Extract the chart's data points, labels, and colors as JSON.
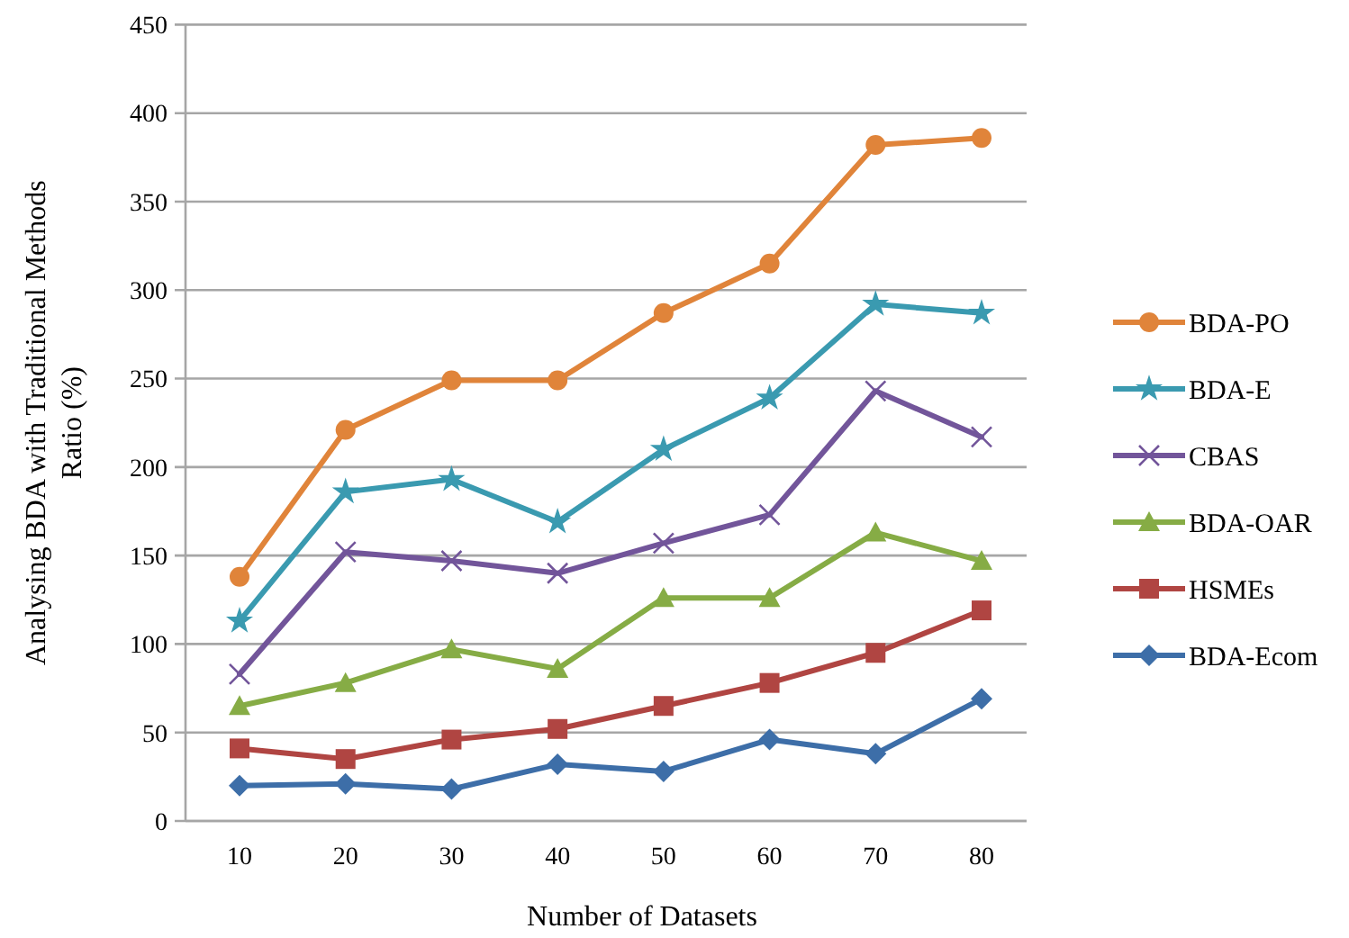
{
  "chart_data": {
    "type": "line",
    "xlabel": "Number of Datasets",
    "ylabel": "Analysing BDA with Traditional Methods Ratio (%)",
    "categories": [
      "10",
      "20",
      "30",
      "40",
      "50",
      "60",
      "70",
      "80"
    ],
    "ylim": [
      0,
      450
    ],
    "yticks": [
      0,
      50,
      100,
      150,
      200,
      250,
      300,
      350,
      400,
      450
    ],
    "grid": "y",
    "legend": "right",
    "series": [
      {
        "name": "BDA-PO",
        "color": "#e0843a",
        "marker": "circle",
        "values": [
          138,
          221,
          249,
          249,
          287,
          315,
          382,
          386
        ]
      },
      {
        "name": "BDA-E",
        "color": "#3a9ab0",
        "marker": "star",
        "values": [
          113,
          186,
          193,
          169,
          210,
          239,
          292,
          287
        ]
      },
      {
        "name": "CBAS",
        "color": "#72559a",
        "marker": "cross",
        "values": [
          83,
          152,
          147,
          140,
          157,
          173,
          243,
          217
        ]
      },
      {
        "name": "BDA-OAR",
        "color": "#86ac45",
        "marker": "triangle",
        "values": [
          65,
          78,
          97,
          86,
          126,
          126,
          163,
          147
        ]
      },
      {
        "name": "HSMEs",
        "color": "#b04542",
        "marker": "square",
        "values": [
          41,
          35,
          46,
          52,
          65,
          78,
          95,
          119
        ]
      },
      {
        "name": "BDA-Ecom",
        "color": "#3d6ea8",
        "marker": "diamond",
        "values": [
          20,
          21,
          18,
          32,
          28,
          46,
          38,
          69
        ]
      }
    ]
  }
}
